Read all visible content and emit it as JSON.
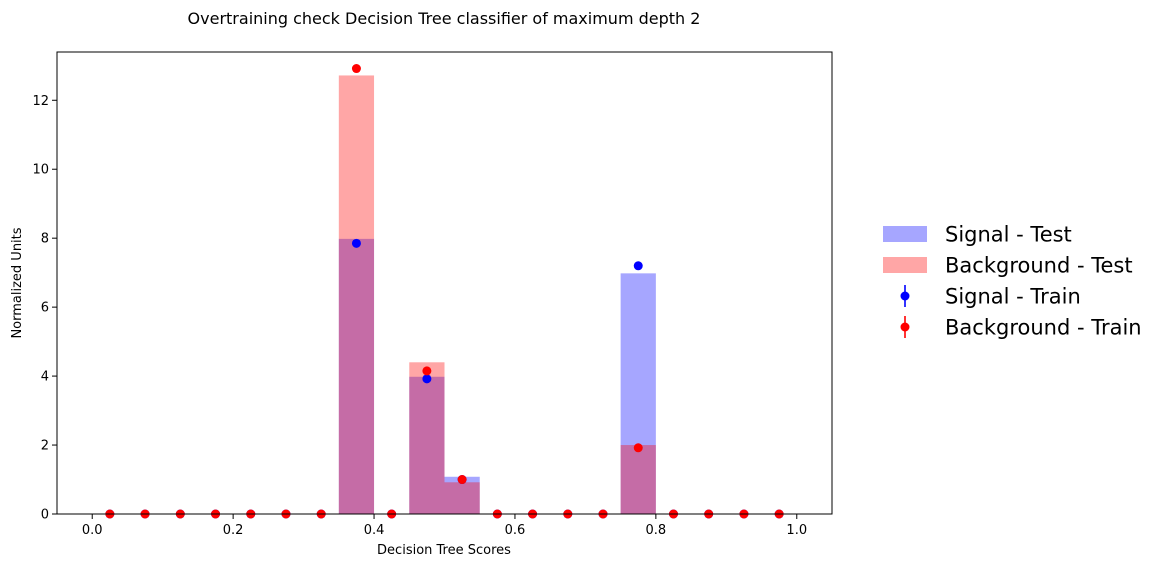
{
  "chart_data": {
    "type": "bar",
    "title": "Overtraining check Decision Tree classifier of maximum depth 2",
    "xlabel": "Decision Tree Scores",
    "ylabel": "Normalized Units",
    "xlim": [
      -0.05,
      1.05
    ],
    "ylim": [
      0,
      13.4
    ],
    "xticks": [
      0.0,
      0.2,
      0.4,
      0.6,
      0.8,
      1.0
    ],
    "xtick_labels": [
      "0.0",
      "0.2",
      "0.4",
      "0.6",
      "0.8",
      "1.0"
    ],
    "yticks": [
      0,
      2,
      4,
      6,
      8,
      10,
      12
    ],
    "ytick_labels": [
      "0",
      "2",
      "4",
      "6",
      "8",
      "10",
      "12"
    ],
    "bin_edges": [
      0.0,
      0.05,
      0.1,
      0.15,
      0.2,
      0.25,
      0.3,
      0.35,
      0.4,
      0.45,
      0.5,
      0.55,
      0.6,
      0.65,
      0.7,
      0.75,
      0.8,
      0.85,
      0.9,
      0.95,
      1.0
    ],
    "bin_centers": [
      0.025,
      0.075,
      0.125,
      0.175,
      0.225,
      0.275,
      0.325,
      0.375,
      0.425,
      0.475,
      0.525,
      0.575,
      0.625,
      0.675,
      0.725,
      0.775,
      0.825,
      0.875,
      0.925,
      0.975
    ],
    "legend_position": "outside-right",
    "histograms": [
      {
        "name": "Signal - Test",
        "color": "#0000ff",
        "alpha": 0.35,
        "values": [
          0,
          0,
          0,
          0,
          0,
          0,
          0,
          7.98,
          0,
          3.98,
          1.08,
          0,
          0,
          0,
          0,
          6.98,
          0,
          0,
          0,
          0
        ]
      },
      {
        "name": "Background - Test",
        "color": "#ff0000",
        "alpha": 0.35,
        "values": [
          0,
          0,
          0,
          0,
          0,
          0,
          0,
          12.72,
          0,
          4.4,
          0.92,
          0,
          0,
          0,
          0,
          2.0,
          0,
          0,
          0,
          0
        ]
      }
    ],
    "points": [
      {
        "name": "Signal - Train",
        "color": "#0000ff",
        "values": [
          0,
          0,
          0,
          0,
          0,
          0,
          0,
          7.85,
          0,
          3.92,
          1.0,
          0,
          0,
          0,
          0,
          7.2,
          0,
          0,
          0,
          0
        ]
      },
      {
        "name": "Background - Train",
        "color": "#ff0000",
        "values": [
          0,
          0,
          0,
          0,
          0,
          0,
          0,
          12.92,
          0,
          4.15,
          1.0,
          0,
          0,
          0,
          0,
          1.92,
          0,
          0,
          0,
          0
        ]
      }
    ]
  }
}
